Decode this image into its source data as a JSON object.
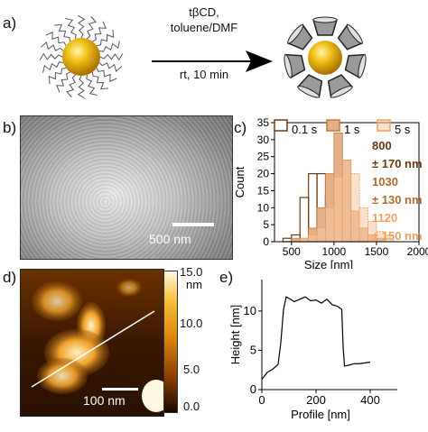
{
  "panels": {
    "a": "a)",
    "b": "b)",
    "c": "c)",
    "d": "d)",
    "e": "e)"
  },
  "reaction": {
    "line1": "tβCD,",
    "line2": "toluene/DMF",
    "line3": "rt, 10 min"
  },
  "sem": {
    "scalebar": "500 nm"
  },
  "afm": {
    "scalebar": "100 nm",
    "colorbar_ticks": [
      "15.0",
      "10.0",
      "5.0",
      "0.0"
    ],
    "colorbar_unit": "nm"
  },
  "colors": {
    "dark": "#6b3a12",
    "mid": "#c87a3c",
    "light": "#f0a060"
  },
  "chart_data": [
    {
      "type": "bar",
      "xlabel": "Size [nm]",
      "ylabel": "Count",
      "xlim": [
        300,
        2000
      ],
      "ylim": [
        0,
        35
      ],
      "xticks": [
        "500",
        "1000",
        "1500",
        "2000"
      ],
      "yticks": [
        "0",
        "5",
        "10",
        "15",
        "20",
        "25",
        "30",
        "35"
      ],
      "bin_width": 100,
      "legend": [
        "0.1 s",
        "1 s",
        "5 s"
      ],
      "annotations": [
        "800",
        "± 170 nm",
        "1030",
        "± 130 nm",
        "1120",
        "± 150 nm"
      ],
      "series": [
        {
          "name": "0.1 s",
          "x": [
            400,
            500,
            600,
            700,
            800,
            900,
            1000,
            1100,
            1200,
            1300
          ],
          "values": [
            1,
            2,
            13,
            20,
            20,
            14,
            9,
            4,
            2,
            1
          ]
        },
        {
          "name": "1 s",
          "x": [
            500,
            600,
            700,
            800,
            900,
            1000,
            1100,
            1200,
            1300,
            1400,
            1500
          ],
          "values": [
            1,
            1,
            4,
            10,
            20,
            32,
            24,
            9,
            4,
            2,
            1
          ]
        },
        {
          "name": "5 s",
          "x": [
            600,
            700,
            800,
            900,
            1000,
            1100,
            1200,
            1300,
            1400,
            1500,
            1600
          ],
          "values": [
            1,
            2,
            4,
            10,
            19,
            24,
            20,
            10,
            6,
            3,
            2
          ]
        }
      ]
    },
    {
      "type": "line",
      "xlabel": "Profile [nm]",
      "ylabel": "Height [nm]",
      "xlim": [
        0,
        500
      ],
      "ylim": [
        0,
        14
      ],
      "xticks": [
        "0",
        "200",
        "400"
      ],
      "yticks": [
        "0",
        "5",
        "10"
      ],
      "x": [
        0,
        20,
        40,
        60,
        70,
        80,
        90,
        100,
        120,
        140,
        160,
        180,
        200,
        220,
        240,
        260,
        280,
        295,
        300,
        305,
        320,
        340,
        360,
        380,
        400
      ],
      "values": [
        1.3,
        2.2,
        2.6,
        3.2,
        6,
        10.2,
        11.8,
        11.6,
        11.2,
        11.5,
        11.8,
        11.3,
        11.4,
        11.0,
        11.5,
        10.8,
        10.6,
        10.2,
        5.5,
        3,
        3.1,
        3.3,
        3.3,
        3.4,
        3.5
      ]
    }
  ]
}
